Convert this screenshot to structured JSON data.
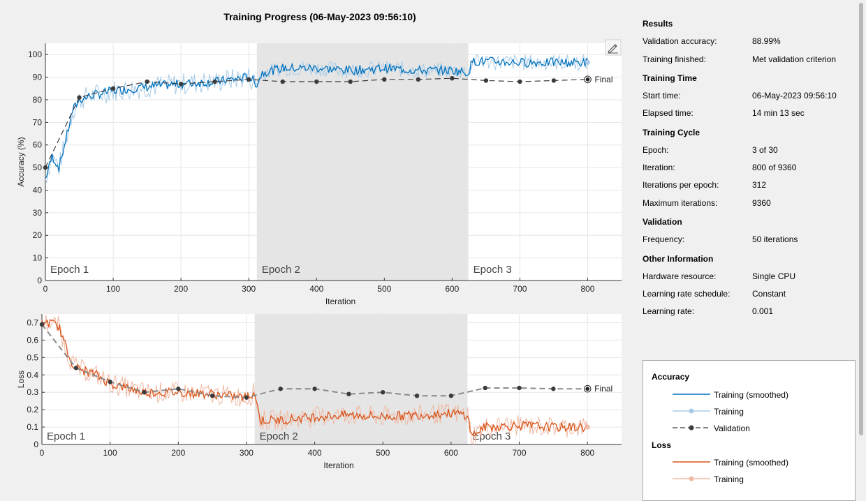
{
  "title": "Training Progress (06-May-2023 09:56:10)",
  "chart_data": [
    {
      "type": "line",
      "name": "accuracy",
      "ylabel": "Accuracy (%)",
      "xlabel": "Iteration",
      "xlim": [
        0,
        850
      ],
      "ylim": [
        0,
        105
      ],
      "xticks": [
        "0",
        "100",
        "200",
        "300",
        "400",
        "500",
        "600",
        "700",
        "800"
      ],
      "yticks": [
        "0",
        "10",
        "20",
        "30",
        "40",
        "50",
        "60",
        "70",
        "80",
        "90",
        "100"
      ],
      "epochs": [
        {
          "label": "Epoch 1",
          "start": 0,
          "end": 312,
          "shaded": false
        },
        {
          "label": "Epoch 2",
          "start": 312,
          "end": 624,
          "shaded": true
        },
        {
          "label": "Epoch 3",
          "start": 624,
          "end": 850,
          "shaded": false
        }
      ],
      "final_label": "Final",
      "smoothed_anchors": {
        "x": [
          0,
          10,
          20,
          30,
          40,
          50,
          70,
          100,
          130,
          160,
          200,
          250,
          300,
          312,
          320,
          350,
          400,
          450,
          500,
          550,
          600,
          624,
          630,
          650,
          700,
          750,
          800
        ],
        "y": [
          45,
          55,
          50,
          62,
          75,
          80,
          82,
          84,
          85,
          86,
          87,
          88,
          90,
          87,
          92,
          94,
          94,
          93,
          94,
          93,
          93,
          92,
          97,
          97,
          96.5,
          96.5,
          96.5
        ]
      },
      "validation": {
        "x": [
          0,
          50,
          100,
          150,
          200,
          250,
          300,
          350,
          400,
          450,
          500,
          550,
          600,
          650,
          700,
          750,
          800
        ],
        "y": [
          50,
          81,
          85,
          88,
          87,
          88,
          89,
          88,
          88,
          88,
          89,
          89,
          89.5,
          88.5,
          88,
          88.5,
          88.99
        ]
      }
    },
    {
      "type": "line",
      "name": "loss",
      "ylabel": "Loss",
      "xlabel": "Iteration",
      "xlim": [
        0,
        850
      ],
      "ylim": [
        0,
        0.75
      ],
      "xticks": [
        "0",
        "100",
        "200",
        "300",
        "400",
        "500",
        "600",
        "700",
        "800"
      ],
      "yticks": [
        "0",
        "0.1",
        "0.2",
        "0.3",
        "0.4",
        "0.5",
        "0.6",
        "0.7"
      ],
      "epochs": [
        {
          "label": "Epoch 1",
          "start": 0,
          "end": 312,
          "shaded": false
        },
        {
          "label": "Epoch 2",
          "start": 312,
          "end": 624,
          "shaded": true
        },
        {
          "label": "Epoch 3",
          "start": 624,
          "end": 850,
          "shaded": false
        }
      ],
      "final_label": "Final",
      "smoothed_anchors": {
        "x": [
          0,
          10,
          25,
          40,
          50,
          80,
          100,
          150,
          200,
          250,
          300,
          312,
          320,
          350,
          400,
          450,
          500,
          550,
          600,
          624,
          630,
          650,
          700,
          750,
          800
        ],
        "y": [
          0.7,
          0.7,
          0.68,
          0.5,
          0.44,
          0.4,
          0.35,
          0.3,
          0.3,
          0.29,
          0.27,
          0.3,
          0.14,
          0.14,
          0.16,
          0.17,
          0.16,
          0.17,
          0.18,
          0.17,
          0.05,
          0.1,
          0.11,
          0.1,
          0.1
        ]
      },
      "validation": {
        "x": [
          0,
          50,
          100,
          150,
          200,
          250,
          300,
          350,
          400,
          450,
          500,
          550,
          600,
          650,
          700,
          750,
          800
        ],
        "y": [
          0.69,
          0.44,
          0.36,
          0.3,
          0.32,
          0.28,
          0.27,
          0.32,
          0.32,
          0.29,
          0.3,
          0.28,
          0.28,
          0.325,
          0.325,
          0.32,
          0.32
        ]
      }
    }
  ],
  "results": {
    "header": "Results",
    "val_acc_label": "Validation accuracy:",
    "val_acc_value": "88.99%",
    "finished_label": "Training finished:",
    "finished_value": "Met validation criterion"
  },
  "training_time": {
    "header": "Training Time",
    "start_label": "Start time:",
    "start_value": "06-May-2023 09:56:10",
    "elapsed_label": "Elapsed time:",
    "elapsed_value": "14 min 13 sec"
  },
  "training_cycle": {
    "header": "Training Cycle",
    "epoch_label": "Epoch:",
    "epoch_value": "3 of 30",
    "iter_label": "Iteration:",
    "iter_value": "800 of 9360",
    "ipe_label": "Iterations per epoch:",
    "ipe_value": "312",
    "max_label": "Maximum iterations:",
    "max_value": "9360"
  },
  "validation": {
    "header": "Validation",
    "freq_label": "Frequency:",
    "freq_value": "50 iterations"
  },
  "other": {
    "header": "Other Information",
    "hw_label": "Hardware resource:",
    "hw_value": "Single CPU",
    "lrs_label": "Learning rate schedule:",
    "lrs_value": "Constant",
    "lr_label": "Learning rate:",
    "lr_value": "0.001"
  },
  "legend": {
    "accuracy_header": "Accuracy",
    "acc_smoothed": "Training (smoothed)",
    "acc_training": "Training",
    "acc_validation": "Validation",
    "loss_header": "Loss",
    "loss_smoothed": "Training (smoothed)",
    "loss_training": "Training"
  },
  "colors": {
    "acc_smoothed": "#0072bd",
    "acc_raw": "#a9cbe6",
    "loss_smoothed": "#d95319",
    "loss_raw": "#f0b9a3",
    "validation": "#3b3b3b",
    "shade": "#e5e5e5"
  },
  "icons": {
    "edit": "pencil-edit-icon"
  }
}
